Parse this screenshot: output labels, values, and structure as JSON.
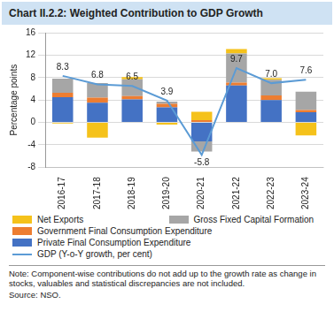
{
  "chart_data": {
    "type": "bar",
    "title": "Chart II.2.2: Weighted Contribution to GDP Growth",
    "y_label": "Percentage points",
    "categories": [
      "2016-17",
      "2017-18",
      "2018-19",
      "2019-20",
      "2020-21",
      "2021-22",
      "2022-23",
      "2023-24"
    ],
    "stacked": true,
    "grid": true,
    "series": [
      {
        "name": "Net Exports",
        "color": "#f5c21b",
        "values": [
          -0.2,
          -2.7,
          0.4,
          -0.4,
          1.5,
          0.8,
          0.3,
          -2.3
        ]
      },
      {
        "name": "Gross Fixed Capital Formation",
        "color": "#a6a6a6",
        "values": [
          2.5,
          2.6,
          3.0,
          0.4,
          -1.8,
          5.2,
          2.8,
          3.3
        ]
      },
      {
        "name": "Government Final Consumption Expenditure",
        "color": "#ed7d31",
        "values": [
          0.8,
          0.9,
          0.6,
          0.6,
          0.4,
          0.5,
          0.8,
          0.4
        ]
      },
      {
        "name": "Private Final Consumption Expenditure",
        "color": "#4472c4",
        "values": [
          4.5,
          3.5,
          4.1,
          2.7,
          -3.4,
          6.6,
          4.0,
          1.8
        ]
      },
      {
        "name": "GDP (Y-o-Y growth, per cent)",
        "type": "line",
        "color": "#5b9bd5",
        "data_labels": true,
        "values": [
          8.3,
          6.8,
          6.5,
          3.9,
          -5.8,
          9.7,
          7.0,
          7.6
        ],
        "value_labels": [
          "8.3",
          "6.8",
          "6.5",
          "3.9",
          "-5.8",
          "9.7",
          "7.0",
          "7.6"
        ]
      }
    ],
    "ylim": [
      -8,
      16
    ],
    "yticks": [
      -8,
      -4,
      0,
      4,
      8,
      12,
      16
    ],
    "note": "Note: Component-wise contributions do not add up to the growth rate as change in stocks, valuables and statistical discrepancies are not included.",
    "source": "Source: NSO."
  }
}
